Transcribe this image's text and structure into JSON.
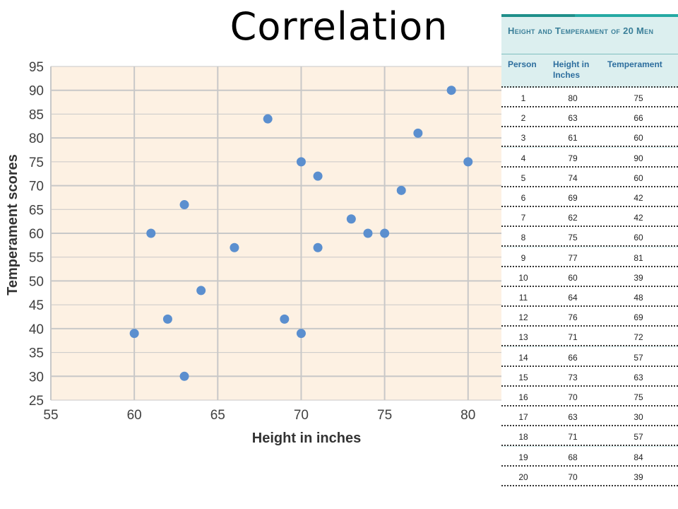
{
  "slide_title": "Correlation",
  "colors": {
    "plot_background": "#fdf1e3",
    "gridline": "#c8c8c8",
    "point": "#5b8fcf",
    "table_background": "#dcefef",
    "table_accent": "#25a9a3",
    "table_title": "#3a7f99",
    "table_header": "#2d6e9e"
  },
  "chart_data": {
    "type": "scatter",
    "title": "",
    "xlabel": "Height in inches",
    "ylabel": "Temperament  scores",
    "xlim": [
      55,
      82
    ],
    "ylim": [
      25,
      95
    ],
    "xticks": [
      55,
      60,
      65,
      70,
      75,
      80
    ],
    "yticks": [
      25,
      30,
      35,
      40,
      45,
      50,
      55,
      60,
      65,
      70,
      75,
      80,
      85,
      90,
      95
    ],
    "grid": true,
    "x": [
      80,
      63,
      61,
      79,
      74,
      69,
      62,
      75,
      77,
      60,
      64,
      76,
      71,
      66,
      73,
      70,
      63,
      71,
      68,
      70
    ],
    "y": [
      75,
      66,
      60,
      90,
      60,
      42,
      42,
      60,
      81,
      39,
      48,
      69,
      72,
      57,
      63,
      75,
      30,
      57,
      84,
      39
    ]
  },
  "table": {
    "title": "Height and Temperament of 20 Men",
    "headers": [
      "Person",
      "Height in Inches",
      "Temperament"
    ],
    "rows": [
      [
        "1",
        "80",
        "75"
      ],
      [
        "2",
        "63",
        "66"
      ],
      [
        "3",
        "61",
        "60"
      ],
      [
        "4",
        "79",
        "90"
      ],
      [
        "5",
        "74",
        "60"
      ],
      [
        "6",
        "69",
        "42"
      ],
      [
        "7",
        "62",
        "42"
      ],
      [
        "8",
        "75",
        "60"
      ],
      [
        "9",
        "77",
        "81"
      ],
      [
        "10",
        "60",
        "39"
      ],
      [
        "11",
        "64",
        "48"
      ],
      [
        "12",
        "76",
        "69"
      ],
      [
        "13",
        "71",
        "72"
      ],
      [
        "14",
        "66",
        "57"
      ],
      [
        "15",
        "73",
        "63"
      ],
      [
        "16",
        "70",
        "75"
      ],
      [
        "17",
        "63",
        "30"
      ],
      [
        "18",
        "71",
        "57"
      ],
      [
        "19",
        "68",
        "84"
      ],
      [
        "20",
        "70",
        "39"
      ]
    ]
  }
}
